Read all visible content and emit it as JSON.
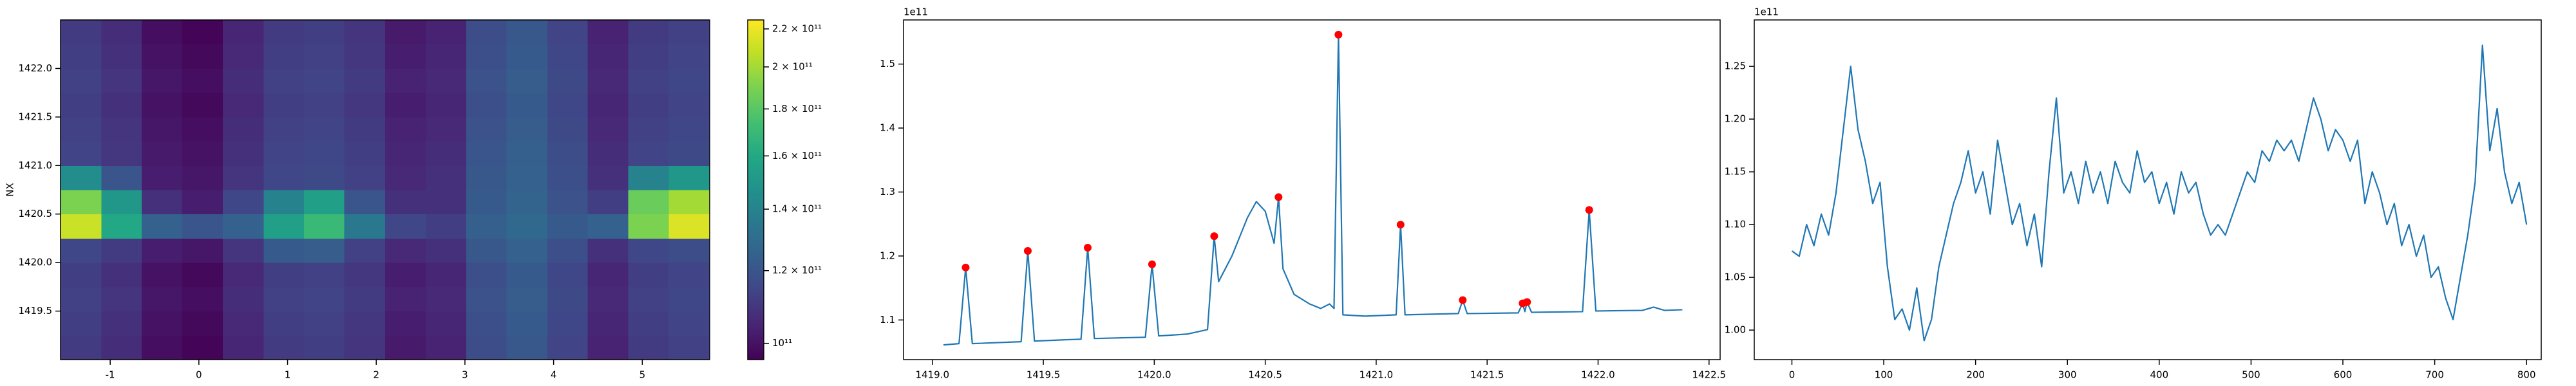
{
  "chart_data": [
    {
      "type": "heatmap",
      "ylabel": "NX",
      "colormap": "viridis",
      "colorbar_scale": "log",
      "x": [
        -1.33,
        -0.87,
        -0.42,
        0.04,
        0.5,
        0.96,
        1.41,
        1.87,
        2.33,
        2.79,
        3.24,
        3.7,
        4.16,
        4.61,
        5.07,
        5.53
      ],
      "y": [
        1419.125,
        1419.375,
        1419.625,
        1419.875,
        1420.125,
        1420.375,
        1420.625,
        1420.875,
        1421.125,
        1421.375,
        1421.625,
        1421.875,
        1422.125,
        1422.375
      ],
      "z": [
        [
          111000000000.0,
          107000000000.0,
          99000000000.0,
          97000000000.0,
          105000000000.0,
          111000000000.0,
          112000000000.0,
          109000000000.0,
          102000000000.0,
          104000000000.0,
          117000000000.0,
          121000000000.0,
          114000000000.0,
          104000000000.0,
          111000000000.0,
          113000000000.0
        ],
        [
          112000000000.0,
          108000000000.0,
          100000000000.0,
          98000000000.0,
          106000000000.0,
          112000000000.0,
          113000000000.0,
          110000000000.0,
          103000000000.0,
          105000000000.0,
          118000000000.0,
          122000000000.0,
          115000000000.0,
          105000000000.0,
          112000000000.0,
          114000000000.0
        ],
        [
          113000000000.0,
          109000000000.0,
          101000000000.0,
          99000000000.0,
          107000000000.0,
          113000000000.0,
          114000000000.0,
          111000000000.0,
          104000000000.0,
          106000000000.0,
          119000000000.0,
          123000000000.0,
          116000000000.0,
          106000000000.0,
          113000000000.0,
          115000000000.0
        ],
        [
          112000000000.0,
          108000000000.0,
          100000000000.0,
          98000000000.0,
          106000000000.0,
          112000000000.0,
          113000000000.0,
          110000000000.0,
          103000000000.0,
          105000000000.0,
          118000000000.0,
          122000000000.0,
          115000000000.0,
          105000000000.0,
          112000000000.0,
          114000000000.0
        ],
        [
          115000000000.0,
          111000000000.0,
          103000000000.0,
          101000000000.0,
          109000000000.0,
          122000000000.0,
          123000000000.0,
          113000000000.0,
          106000000000.0,
          108000000000.0,
          121000000000.0,
          125000000000.0,
          118000000000.0,
          108000000000.0,
          115000000000.0,
          117000000000.0
        ],
        [
          210000000000.0,
          160000000000.0,
          125000000000.0,
          120000000000.0,
          125000000000.0,
          155000000000.0,
          170000000000.0,
          135000000000.0,
          115000000000.0,
          112000000000.0,
          124000000000.0,
          128000000000.0,
          122000000000.0,
          125000000000.0,
          190000000000.0,
          215000000000.0
        ],
        [
          190000000000.0,
          150000000000.0,
          108000000000.0,
          103000000000.0,
          115000000000.0,
          140000000000.0,
          155000000000.0,
          120000000000.0,
          108000000000.0,
          108000000000.0,
          122000000000.0,
          126000000000.0,
          119000000000.0,
          112000000000.0,
          185000000000.0,
          200000000000.0
        ],
        [
          145000000000.0,
          120000000000.0,
          103000000000.0,
          101000000000.0,
          109000000000.0,
          115000000000.0,
          116000000000.0,
          113000000000.0,
          106000000000.0,
          108000000000.0,
          121000000000.0,
          125000000000.0,
          118000000000.0,
          108000000000.0,
          140000000000.0,
          150000000000.0
        ],
        [
          114000000000.0,
          110000000000.0,
          102000000000.0,
          100000000000.0,
          108000000000.0,
          114000000000.0,
          115000000000.0,
          112000000000.0,
          105000000000.0,
          107000000000.0,
          120000000000.0,
          124000000000.0,
          117000000000.0,
          107000000000.0,
          114000000000.0,
          116000000000.0
        ],
        [
          113000000000.0,
          109000000000.0,
          101000000000.0,
          99000000000.0,
          107000000000.0,
          113000000000.0,
          114000000000.0,
          111000000000.0,
          104000000000.0,
          106000000000.0,
          119000000000.0,
          123000000000.0,
          116000000000.0,
          106000000000.0,
          113000000000.0,
          115000000000.0
        ],
        [
          112000000000.0,
          108000000000.0,
          100000000000.0,
          98000000000.0,
          106000000000.0,
          112000000000.0,
          113000000000.0,
          110000000000.0,
          103000000000.0,
          105000000000.0,
          118000000000.0,
          122000000000.0,
          115000000000.0,
          105000000000.0,
          112000000000.0,
          114000000000.0
        ],
        [
          113000000000.0,
          109000000000.0,
          101000000000.0,
          99000000000.0,
          107000000000.0,
          113000000000.0,
          114000000000.0,
          111000000000.0,
          104000000000.0,
          106000000000.0,
          119000000000.0,
          123000000000.0,
          116000000000.0,
          106000000000.0,
          113000000000.0,
          115000000000.0
        ],
        [
          112000000000.0,
          108000000000.0,
          100000000000.0,
          98000000000.0,
          106000000000.0,
          112000000000.0,
          113000000000.0,
          110000000000.0,
          103000000000.0,
          105000000000.0,
          118000000000.0,
          122000000000.0,
          115000000000.0,
          105000000000.0,
          112000000000.0,
          114000000000.0
        ],
        [
          111000000000.0,
          107000000000.0,
          99000000000.0,
          97000000000.0,
          105000000000.0,
          111000000000.0,
          112000000000.0,
          109000000000.0,
          102000000000.0,
          104000000000.0,
          117000000000.0,
          121000000000.0,
          114000000000.0,
          104000000000.0,
          111000000000.0,
          113000000000.0
        ]
      ],
      "xlim": [
        -1.56,
        5.76
      ],
      "ylim": [
        1419.0,
        1422.5
      ],
      "xticks": [
        -1,
        0,
        1,
        2,
        3,
        4,
        5
      ],
      "yticks": [
        1419.5,
        {
          "value": 1420,
          "label": "1420.0"
        },
        1420.5,
        {
          "value": 1421,
          "label": "1421.0"
        },
        1421.5,
        {
          "value": 1422,
          "label": "1422.0"
        }
      ],
      "clim": [
        96000000000.0,
        225000000000.0
      ],
      "cticks": [
        {
          "value": 100000000000.0,
          "label": "10¹¹"
        },
        {
          "value": 120000000000.0,
          "label": "1.2 × 10¹¹"
        },
        {
          "value": 140000000000.0,
          "label": "1.4 × 10¹¹"
        },
        {
          "value": 160000000000.0,
          "label": "1.6 × 10¹¹"
        },
        {
          "value": 180000000000.0,
          "label": "1.8 × 10¹¹"
        },
        {
          "value": 200000000000.0,
          "label": "2 × 10¹¹"
        },
        {
          "value": 220000000000.0,
          "label": "2.2 × 10¹¹"
        }
      ]
    },
    {
      "type": "line",
      "offset_text": "1e11",
      "series": [
        {
          "type": "line",
          "color": "#1f77b4",
          "x": [
            1419.05,
            1419.12,
            1419.15,
            1419.18,
            1419.4,
            1419.43,
            1419.46,
            1419.67,
            1419.7,
            1419.73,
            1419.96,
            1419.99,
            1420.02,
            1420.15,
            1420.24,
            1420.27,
            1420.29,
            1420.35,
            1420.42,
            1420.46,
            1420.5,
            1420.54,
            1420.56,
            1420.58,
            1420.63,
            1420.7,
            1420.75,
            1420.79,
            1420.81,
            1420.83,
            1420.85,
            1420.95,
            1421.09,
            1421.11,
            1421.13,
            1421.37,
            1421.39,
            1421.41,
            1421.64,
            1421.66,
            1421.67,
            1421.68,
            1421.7,
            1421.93,
            1421.96,
            1421.99,
            1422.2,
            1422.25,
            1422.3,
            1422.38
          ],
          "values": [
            106100000000.0,
            106300000000.0,
            118200000000.0,
            106300000000.0,
            106600000000.0,
            120800000000.0,
            106700000000.0,
            107000000000.0,
            121300000000.0,
            107100000000.0,
            107300000000.0,
            118700000000.0,
            107500000000.0,
            107800000000.0,
            108500000000.0,
            123100000000.0,
            116000000000.0,
            120000000000.0,
            126000000000.0,
            128500000000.0,
            127000000000.0,
            122000000000.0,
            129200000000.0,
            118000000000.0,
            114000000000.0,
            112500000000.0,
            111800000000.0,
            112500000000.0,
            111800000000.0,
            154600000000.0,
            110800000000.0,
            110600000000.0,
            110800000000.0,
            124900000000.0,
            110800000000.0,
            111000000000.0,
            113100000000.0,
            111000000000.0,
            111100000000.0,
            112600000000.0,
            111300000000.0,
            112800000000.0,
            111200000000.0,
            111300000000.0,
            127200000000.0,
            111400000000.0,
            111500000000.0,
            112000000000.0,
            111500000000.0,
            111600000000.0
          ]
        },
        {
          "type": "scatter",
          "color": "#ff0000",
          "x": [
            1419.15,
            1419.43,
            1419.7,
            1419.99,
            1420.27,
            1420.56,
            1420.83,
            1421.11,
            1421.39,
            1421.66,
            1421.68,
            1421.96
          ],
          "values": [
            118200000000.0,
            120800000000.0,
            121300000000.0,
            118700000000.0,
            123100000000.0,
            129200000000.0,
            154600000000.0,
            124900000000.0,
            113100000000.0,
            112600000000.0,
            112800000000.0,
            127200000000.0
          ]
        }
      ],
      "xlim": [
        1418.87,
        1422.55
      ],
      "ylim": [
        103800000000.0,
        156900000000.0
      ],
      "xticks": [
        {
          "value": 1419,
          "label": "1419.0"
        },
        1419.5,
        {
          "value": 1420,
          "label": "1420.0"
        },
        1420.5,
        {
          "value": 1421,
          "label": "1421.0"
        },
        1421.5,
        {
          "value": 1422,
          "label": "1422.0"
        },
        1422.5
      ],
      "yticks": [
        {
          "value": 110000000000.0,
          "label": "1.1"
        },
        {
          "value": 120000000000.0,
          "label": "1.2"
        },
        {
          "value": 130000000000.0,
          "label": "1.3"
        },
        {
          "value": 140000000000.0,
          "label": "1.4"
        },
        {
          "value": 150000000000.0,
          "label": "1.5"
        }
      ]
    },
    {
      "type": "line",
      "offset_text": "1e11",
      "series": [
        {
          "type": "line",
          "color": "#1f77b4",
          "x": [
            0,
            8,
            16,
            24,
            32,
            40,
            48,
            56,
            64,
            72,
            80,
            88,
            96,
            104,
            112,
            120,
            128,
            136,
            144,
            152,
            160,
            168,
            176,
            184,
            192,
            200,
            208,
            216,
            224,
            232,
            240,
            248,
            256,
            264,
            272,
            280,
            288,
            296,
            304,
            312,
            320,
            328,
            336,
            344,
            352,
            360,
            368,
            376,
            384,
            392,
            400,
            408,
            416,
            424,
            432,
            440,
            448,
            456,
            464,
            472,
            480,
            488,
            496,
            504,
            512,
            520,
            528,
            536,
            544,
            552,
            560,
            568,
            576,
            584,
            592,
            600,
            608,
            616,
            624,
            632,
            640,
            648,
            656,
            664,
            672,
            680,
            688,
            696,
            704,
            712,
            720,
            728,
            736,
            744,
            752,
            760,
            768,
            776,
            784,
            792,
            800
          ],
          "values": [
            107500000000.0,
            107000000000.0,
            110000000000.0,
            108000000000.0,
            111000000000.0,
            109000000000.0,
            113000000000.0,
            119000000000.0,
            125000000000.0,
            119000000000.0,
            116000000000.0,
            112000000000.0,
            114000000000.0,
            106000000000.0,
            101000000000.0,
            102000000000.0,
            100000000000.0,
            104000000000.0,
            99000000000.0,
            101000000000.0,
            106000000000.0,
            109000000000.0,
            112000000000.0,
            114000000000.0,
            117000000000.0,
            113000000000.0,
            115000000000.0,
            111000000000.0,
            118000000000.0,
            114000000000.0,
            110000000000.0,
            112000000000.0,
            108000000000.0,
            111000000000.0,
            106000000000.0,
            115000000000.0,
            122000000000.0,
            113000000000.0,
            115000000000.0,
            112000000000.0,
            116000000000.0,
            113000000000.0,
            115000000000.0,
            112000000000.0,
            116000000000.0,
            114000000000.0,
            113000000000.0,
            117000000000.0,
            114000000000.0,
            115000000000.0,
            112000000000.0,
            114000000000.0,
            111000000000.0,
            115000000000.0,
            113000000000.0,
            114000000000.0,
            111000000000.0,
            109000000000.0,
            110000000000.0,
            109000000000.0,
            111000000000.0,
            113000000000.0,
            115000000000.0,
            114000000000.0,
            117000000000.0,
            116000000000.0,
            118000000000.0,
            117000000000.0,
            118000000000.0,
            116000000000.0,
            119000000000.0,
            122000000000.0,
            120000000000.0,
            117000000000.0,
            119000000000.0,
            118000000000.0,
            116000000000.0,
            118000000000.0,
            112000000000.0,
            115000000000.0,
            113000000000.0,
            110000000000.0,
            112000000000.0,
            108000000000.0,
            110000000000.0,
            107000000000.0,
            109000000000.0,
            105000000000.0,
            106000000000.0,
            103000000000.0,
            101000000000.0,
            105000000000.0,
            109000000000.0,
            114000000000.0,
            127000000000.0,
            117000000000.0,
            121000000000.0,
            115000000000.0,
            112000000000.0,
            114000000000.0,
            110000000000.0
          ]
        }
      ],
      "xlim": [
        -41,
        816
      ],
      "ylim": [
        97200000000.0,
        129400000000.0
      ],
      "xticks": [
        0,
        100,
        200,
        300,
        400,
        500,
        600,
        700,
        800
      ],
      "yticks": [
        {
          "value": 100000000000.0,
          "label": "1.00"
        },
        {
          "value": 105000000000.0,
          "label": "1.05"
        },
        {
          "value": 110000000000.0,
          "label": "1.10"
        },
        {
          "value": 115000000000.0,
          "label": "1.15"
        },
        {
          "value": 120000000000.0,
          "label": "1.20"
        },
        {
          "value": 125000000000.0,
          "label": "1.25"
        }
      ]
    }
  ]
}
